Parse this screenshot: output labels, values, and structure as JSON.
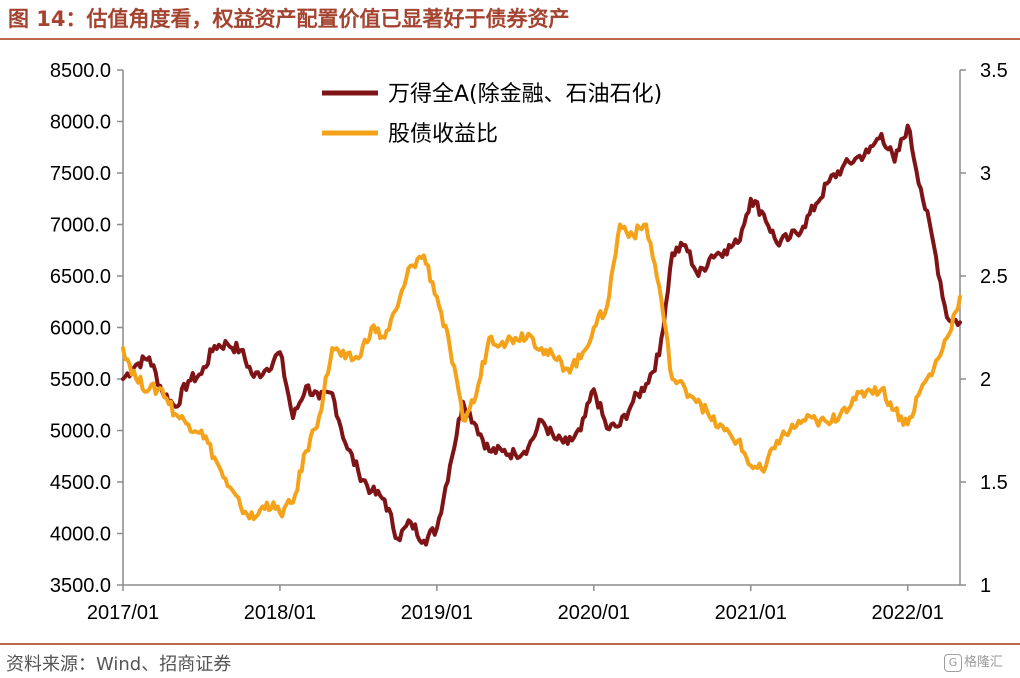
{
  "header": {
    "title": "图 14：估值角度看，权益资产配置价值已显著好于债券资产"
  },
  "footer": {
    "source": "资料来源：Wind、招商证券",
    "watermark_icon": "G",
    "watermark_text": "格隆汇"
  },
  "chart_data": {
    "type": "line",
    "title": "",
    "xlabel": "",
    "ylabel": "",
    "x_tick_labels": [
      "2017/01",
      "2018/01",
      "2019/01",
      "2020/01",
      "2021/01",
      "2022/01"
    ],
    "x_range": [
      "2017-01",
      "2022-05"
    ],
    "y_left": {
      "range": [
        3500,
        8500
      ],
      "ticks": [
        "3500.0",
        "4000.0",
        "4500.0",
        "5000.0",
        "5500.0",
        "6000.0",
        "6500.0",
        "7000.0",
        "7500.0",
        "8000.0",
        "8500.0"
      ]
    },
    "y_right": {
      "range": [
        1,
        3.5
      ],
      "ticks": [
        "1",
        "1.5",
        "2",
        "2.5",
        "3",
        "3.5"
      ]
    },
    "grid": false,
    "legend_position": "top-center",
    "series": [
      {
        "name": "万得全A(除金融、石油石化)",
        "axis": "left",
        "color": "#7f1416",
        "x": [
          "2017-01",
          "2017-02",
          "2017-03",
          "2017-04",
          "2017-05",
          "2017-06",
          "2017-07",
          "2017-08",
          "2017-09",
          "2017-10",
          "2017-11",
          "2017-12",
          "2018-01",
          "2018-02",
          "2018-03",
          "2018-04",
          "2018-05",
          "2018-06",
          "2018-07",
          "2018-08",
          "2018-09",
          "2018-10",
          "2018-11",
          "2018-12",
          "2019-01",
          "2019-02",
          "2019-03",
          "2019-04",
          "2019-05",
          "2019-06",
          "2019-07",
          "2019-08",
          "2019-09",
          "2019-10",
          "2019-11",
          "2019-12",
          "2020-01",
          "2020-02",
          "2020-03",
          "2020-04",
          "2020-05",
          "2020-06",
          "2020-07",
          "2020-08",
          "2020-09",
          "2020-10",
          "2020-11",
          "2020-12",
          "2021-01",
          "2021-02",
          "2021-03",
          "2021-04",
          "2021-05",
          "2021-06",
          "2021-07",
          "2021-08",
          "2021-09",
          "2021-10",
          "2021-11",
          "2021-12",
          "2022-01",
          "2022-02",
          "2022-03",
          "2022-04",
          "2022-05"
        ],
        "values": [
          5500,
          5640,
          5710,
          5380,
          5230,
          5480,
          5550,
          5820,
          5840,
          5780,
          5520,
          5600,
          5760,
          5120,
          5430,
          5310,
          5360,
          4880,
          4600,
          4410,
          4330,
          3950,
          4110,
          3930,
          4050,
          4660,
          5280,
          5050,
          4800,
          4800,
          4770,
          4840,
          5100,
          4920,
          4870,
          5000,
          5400,
          5020,
          5050,
          5280,
          5450,
          5730,
          6720,
          6800,
          6500,
          6700,
          6750,
          6820,
          7250,
          7100,
          6820,
          6870,
          6980,
          7200,
          7420,
          7550,
          7640,
          7700,
          7880,
          7610,
          7960,
          7350,
          6800,
          6100,
          6050
        ]
      },
      {
        "name": "股债收益比",
        "axis": "right",
        "color": "#f5a21b",
        "x": [
          "2017-01",
          "2017-02",
          "2017-03",
          "2017-04",
          "2017-05",
          "2017-06",
          "2017-07",
          "2017-08",
          "2017-09",
          "2017-10",
          "2017-11",
          "2017-12",
          "2018-01",
          "2018-02",
          "2018-03",
          "2018-04",
          "2018-05",
          "2018-06",
          "2018-07",
          "2018-08",
          "2018-09",
          "2018-10",
          "2018-11",
          "2018-12",
          "2019-01",
          "2019-02",
          "2019-03",
          "2019-04",
          "2019-05",
          "2019-06",
          "2019-07",
          "2019-08",
          "2019-09",
          "2019-10",
          "2019-11",
          "2019-12",
          "2020-01",
          "2020-02",
          "2020-03",
          "2020-04",
          "2020-05",
          "2020-06",
          "2020-07",
          "2020-08",
          "2020-09",
          "2020-10",
          "2020-11",
          "2020-12",
          "2021-01",
          "2021-02",
          "2021-03",
          "2021-04",
          "2021-05",
          "2021-06",
          "2021-07",
          "2021-08",
          "2021-09",
          "2021-10",
          "2021-11",
          "2021-12",
          "2022-01",
          "2022-02",
          "2022-03",
          "2022-04",
          "2022-05"
        ],
        "values": [
          2.15,
          2.0,
          1.95,
          1.95,
          1.83,
          1.78,
          1.75,
          1.62,
          1.48,
          1.38,
          1.32,
          1.4,
          1.35,
          1.4,
          1.65,
          1.82,
          2.15,
          2.1,
          2.1,
          2.25,
          2.2,
          2.35,
          2.55,
          2.6,
          2.4,
          2.15,
          1.8,
          1.92,
          2.2,
          2.18,
          2.2,
          2.22,
          2.15,
          2.1,
          2.05,
          2.1,
          2.25,
          2.35,
          2.75,
          2.7,
          2.75,
          2.45,
          2.0,
          1.95,
          1.9,
          1.8,
          1.75,
          1.7,
          1.58,
          1.55,
          1.7,
          1.75,
          1.8,
          1.8,
          1.78,
          1.85,
          1.9,
          1.95,
          1.95,
          1.85,
          1.78,
          1.95,
          2.05,
          2.2,
          2.4
        ]
      }
    ]
  }
}
